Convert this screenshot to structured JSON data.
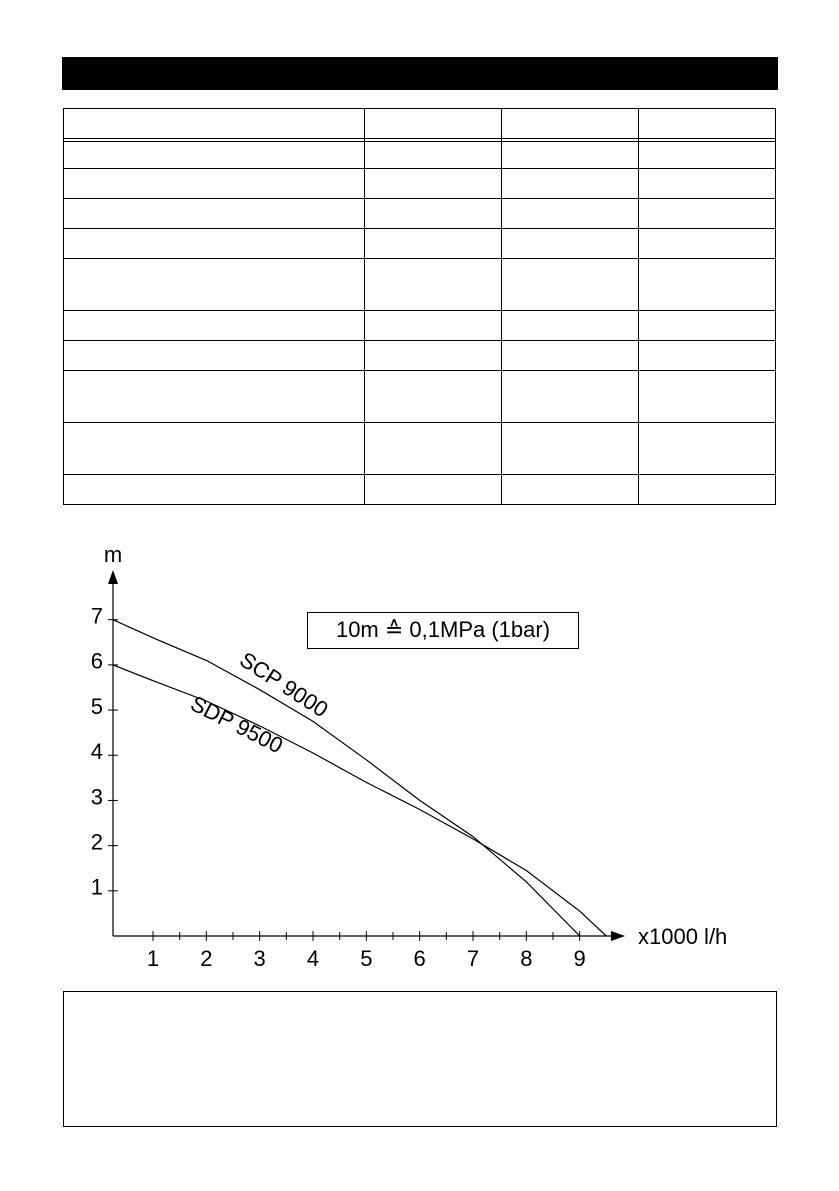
{
  "chart_data": {
    "type": "line",
    "y_label": "m",
    "x_label": "x1000 l/h",
    "annotation": "10m ≙ 0,1MPa (1bar)",
    "xlim": [
      0.25,
      9.85
    ],
    "ylim": [
      0,
      8.1
    ],
    "xticks": [
      1,
      2,
      3,
      4,
      5,
      6,
      7,
      8,
      9
    ],
    "xminorticks": [
      1.5,
      2.5,
      3.5,
      4.5,
      5.5,
      6.5,
      7.5,
      8.5
    ],
    "yticks": [
      1,
      2,
      3,
      4,
      5,
      6,
      7
    ],
    "series": [
      {
        "name": "SCP 9000",
        "color": "#000000",
        "x": [
          0.25,
          1,
          2,
          3,
          4,
          5,
          6,
          7,
          8,
          9
        ],
        "values": [
          7,
          6.6,
          6.1,
          5.45,
          4.75,
          3.9,
          3.0,
          2.2,
          1.2,
          0
        ]
      },
      {
        "name": "SDP 9500",
        "color": "#000000",
        "x": [
          0.25,
          1,
          2,
          3,
          4,
          5,
          6,
          7,
          8,
          9,
          9.5
        ],
        "values": [
          6,
          5.65,
          5.2,
          4.65,
          4.05,
          3.4,
          2.8,
          2.15,
          1.45,
          0.55,
          0
        ]
      }
    ]
  }
}
